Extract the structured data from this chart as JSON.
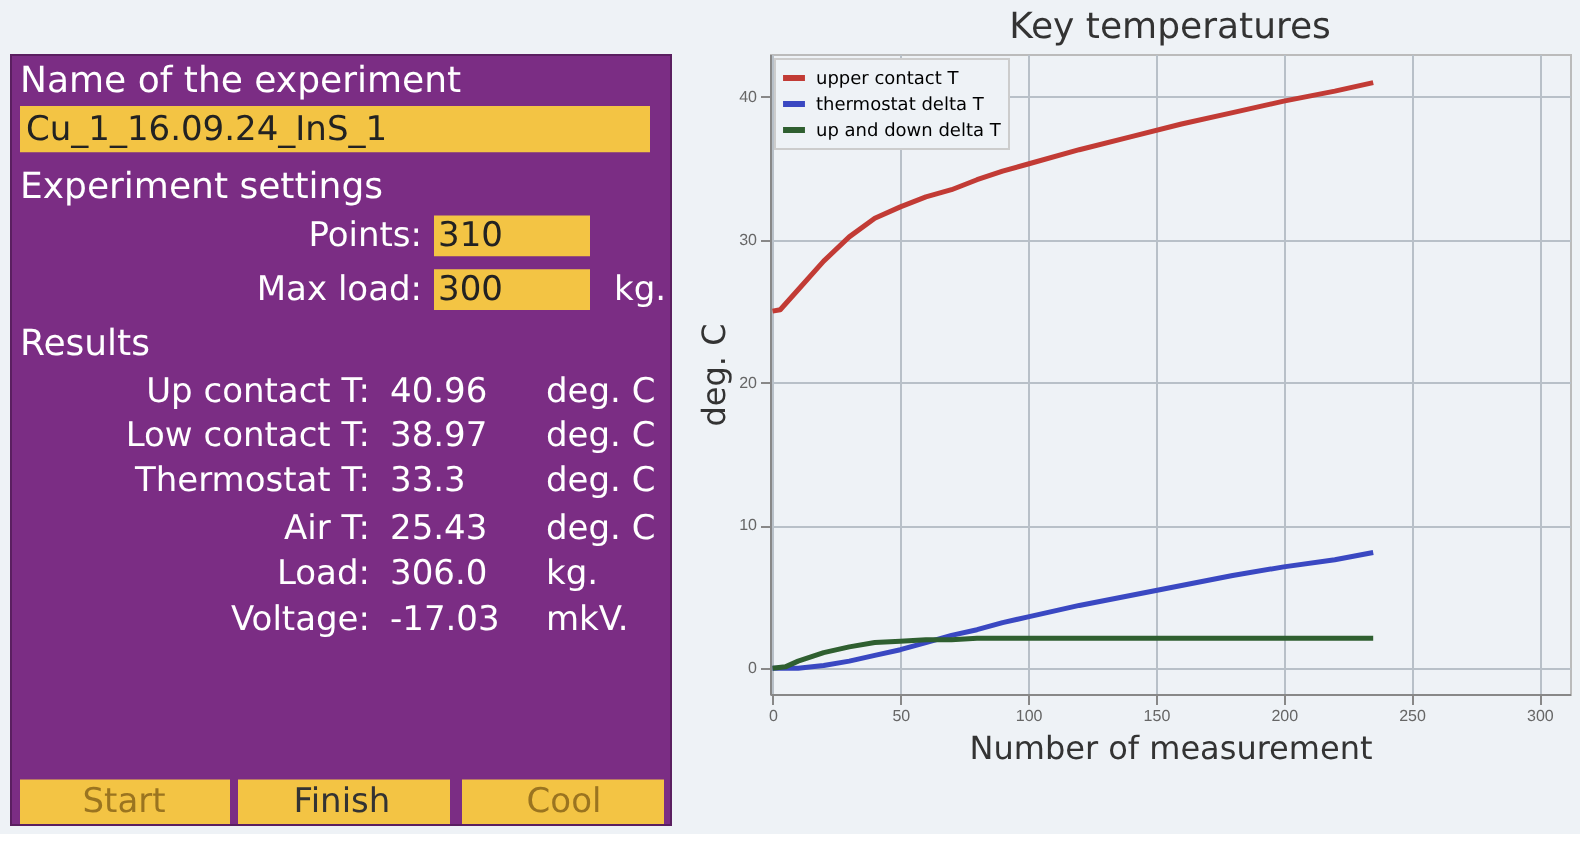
{
  "chart_data": [
    {
      "type": "other",
      "annotations": [
        "Name of the experiment",
        "Cu_1_16.09.24_InS_1",
        "Experiment settings",
        "Points:",
        "310",
        "Max load:",
        "300",
        "kg.",
        "Results",
        "Up contact T:",
        "40.96",
        "deg. C",
        "Low contact T:",
        "38.97",
        "deg. C",
        "Thermostat T:",
        "33.3",
        "deg. C",
        "Air T:",
        "25.43",
        "deg. C",
        "Load:",
        "306.0",
        "kg.",
        "Voltage:",
        "-17.03",
        "mkV.",
        "Start",
        "Finish",
        "Cool"
      ]
    },
    {
      "type": "line",
      "title": "Key temperatures",
      "xlabel": "Number of measurement",
      "ylabel": "deg. C",
      "xlim": [
        -1,
        312
      ],
      "xticks": [
        0,
        50,
        100,
        150,
        200,
        250,
        300
      ],
      "ylim": [
        -1.8,
        43
      ],
      "yticks": [
        0,
        10,
        20,
        30,
        40
      ],
      "grid": true,
      "legend": "top left",
      "marker": "none",
      "line_style": "solid",
      "series": [
        {
          "name": "upper contact T",
          "color": "#c23b35",
          "x": [
            0,
            3,
            10,
            20,
            30,
            40,
            50,
            60,
            70,
            80,
            90,
            100,
            120,
            140,
            160,
            180,
            200,
            220,
            235
          ],
          "values": [
            25,
            25.1,
            26.5,
            28.5,
            30.2,
            31.5,
            32.3,
            33,
            33.5,
            34.2,
            34.8,
            35.3,
            36.3,
            37.2,
            38.1,
            38.9,
            39.7,
            40.4,
            41
          ]
        },
        {
          "name": "thermostat delta T",
          "color": "#3a48c2",
          "x": [
            0,
            10,
            20,
            30,
            40,
            50,
            60,
            70,
            80,
            90,
            100,
            120,
            140,
            160,
            180,
            200,
            220,
            235
          ],
          "values": [
            0,
            0,
            0.2,
            0.5,
            0.9,
            1.3,
            1.8,
            2.3,
            2.7,
            3.2,
            3.6,
            4.4,
            5.1,
            5.8,
            6.5,
            7.1,
            7.6,
            8.1
          ]
        },
        {
          "name": "up and down delta T",
          "color": "#2f5f30",
          "x": [
            0,
            5,
            10,
            20,
            30,
            40,
            50,
            60,
            70,
            80,
            100,
            150,
            200,
            235
          ],
          "values": [
            0,
            0.1,
            0.5,
            1.1,
            1.5,
            1.8,
            1.9,
            2.0,
            2.0,
            2.1,
            2.1,
            2.1,
            2.1,
            2.1
          ]
        }
      ]
    }
  ]
}
